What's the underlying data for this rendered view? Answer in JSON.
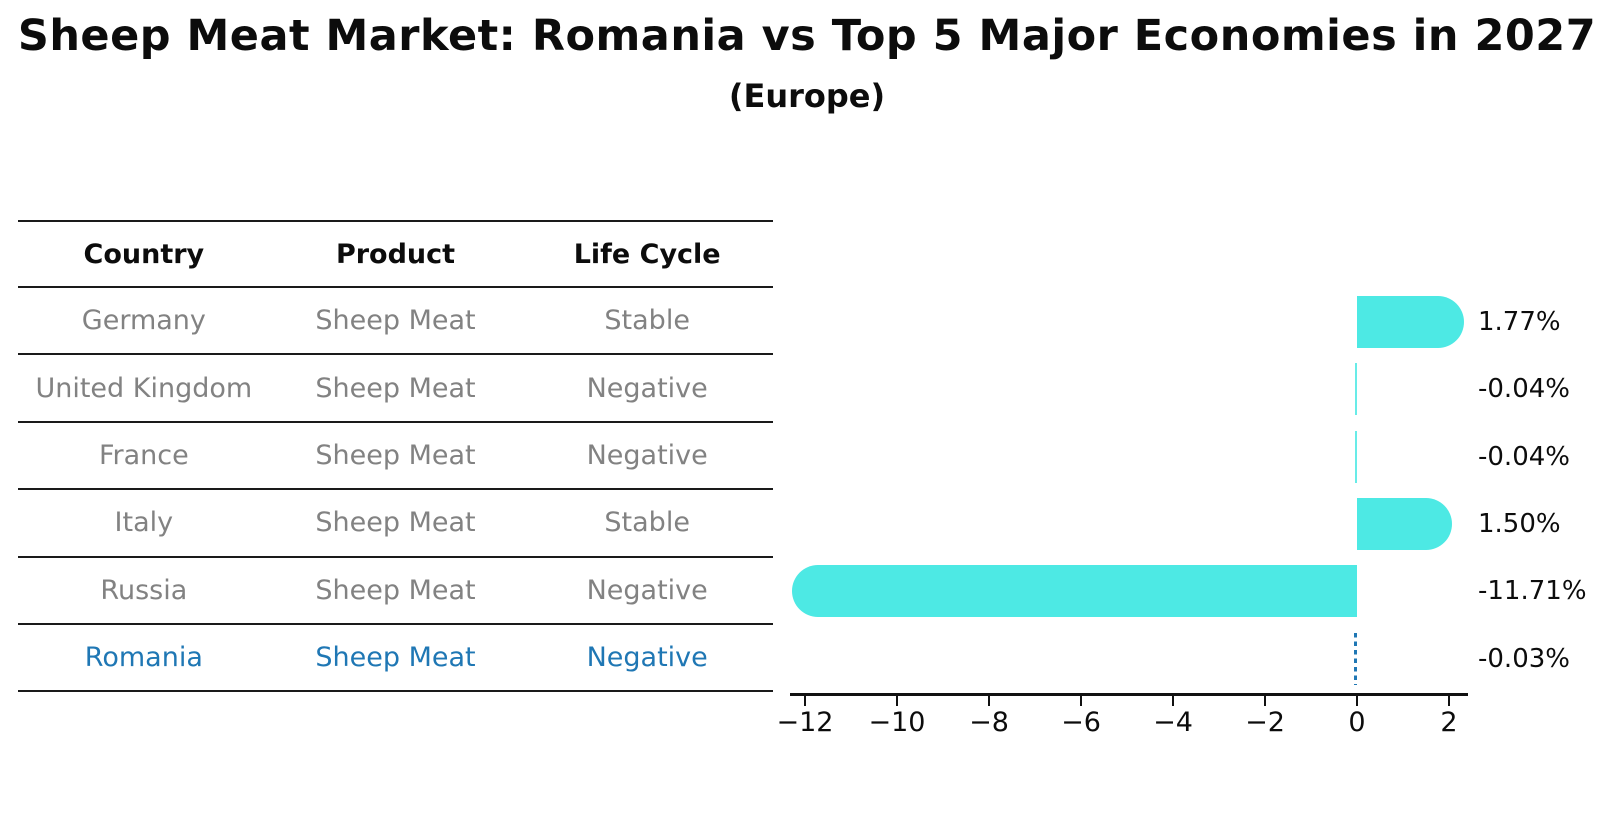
{
  "title": "Sheep Meat Market: Romania vs Top 5 Major Economies in 2027",
  "subtitle": "(Europe)",
  "table": {
    "headers": [
      "Country",
      "Product",
      "Life Cycle"
    ],
    "rows": [
      {
        "country": "Germany",
        "product": "Sheep Meat",
        "life_cycle": "Stable",
        "highlighted": false
      },
      {
        "country": "United Kingdom",
        "product": "Sheep Meat",
        "life_cycle": "Negative",
        "highlighted": false
      },
      {
        "country": "France",
        "product": "Sheep Meat",
        "life_cycle": "Negative",
        "highlighted": false
      },
      {
        "country": "Italy",
        "product": "Sheep Meat",
        "life_cycle": "Stable",
        "highlighted": false
      },
      {
        "country": "Russia",
        "product": "Sheep Meat",
        "life_cycle": "Negative",
        "highlighted": false
      },
      {
        "country": "Romania",
        "product": "Sheep Meat",
        "life_cycle": "Negative",
        "highlighted": true
      }
    ]
  },
  "chart_data": {
    "type": "bar",
    "orientation": "horizontal",
    "categories": [
      "Germany",
      "United Kingdom",
      "France",
      "Italy",
      "Russia",
      "Romania"
    ],
    "values": [
      1.77,
      -0.04,
      -0.04,
      1.5,
      -11.71,
      -0.03
    ],
    "value_labels": [
      "1.77%",
      "-0.04%",
      "-0.04%",
      "1.50%",
      "-11.71%",
      "-0.03%"
    ],
    "xlim": [
      -12.33,
      2.41
    ],
    "xticks": [
      -12,
      -10,
      -8,
      -6,
      -4,
      -2,
      0,
      2
    ],
    "xtick_labels": [
      "−12",
      "−10",
      "−8",
      "−6",
      "−4",
      "−2",
      "0",
      "2"
    ],
    "grid": false,
    "legend": null,
    "highlight": {
      "index": 5,
      "style": "dashed"
    }
  },
  "colors": {
    "bar": "#4DE9E4",
    "highlight": "#1f77b4",
    "table_text": "#828282",
    "header_text": "#0c0c0c",
    "line": "#1a1a1a"
  }
}
